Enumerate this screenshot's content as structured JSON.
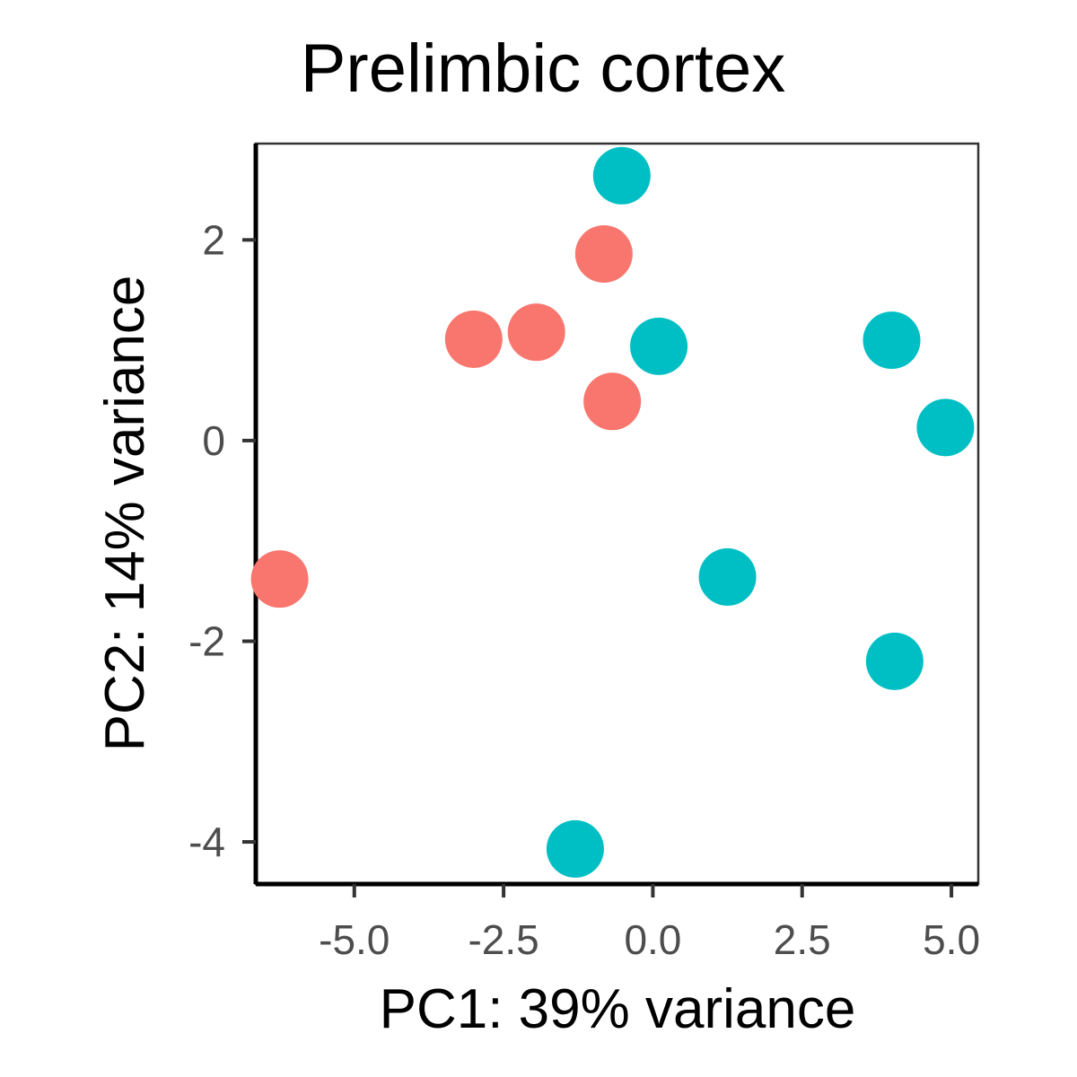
{
  "chart_data": {
    "type": "scatter",
    "title": "Prelimbic cortex",
    "xlabel": "PC1: 39% variance",
    "ylabel": "PC2: 14% variance",
    "xlim": [
      -6.65,
      5.45
    ],
    "ylim": [
      -4.42,
      2.96
    ],
    "xticks": [
      -5.0,
      -2.5,
      0.0,
      2.5,
      5.0
    ],
    "xtick_labels": [
      "-5.0",
      "-2.5",
      "0.0",
      "2.5",
      "5.0"
    ],
    "yticks": [
      -4,
      -2,
      0,
      2
    ],
    "ytick_labels": [
      "-4",
      "-2",
      "0",
      "2"
    ],
    "grid": false,
    "legend": "none",
    "series": [
      {
        "color": "#F8766D",
        "points": [
          {
            "x": -6.25,
            "y": -1.38
          },
          {
            "x": -3.0,
            "y": 1.01
          },
          {
            "x": -1.95,
            "y": 1.08
          },
          {
            "x": -0.82,
            "y": 1.86
          },
          {
            "x": -0.68,
            "y": 0.39
          }
        ]
      },
      {
        "color": "#00BFC4",
        "points": [
          {
            "x": -0.52,
            "y": 2.64
          },
          {
            "x": 0.1,
            "y": 0.94
          },
          {
            "x": 4.0,
            "y": 1.0
          },
          {
            "x": 4.9,
            "y": 0.13
          },
          {
            "x": 1.25,
            "y": -1.36
          },
          {
            "x": 4.05,
            "y": -2.2
          },
          {
            "x": -1.3,
            "y": -4.07
          }
        ]
      }
    ]
  }
}
